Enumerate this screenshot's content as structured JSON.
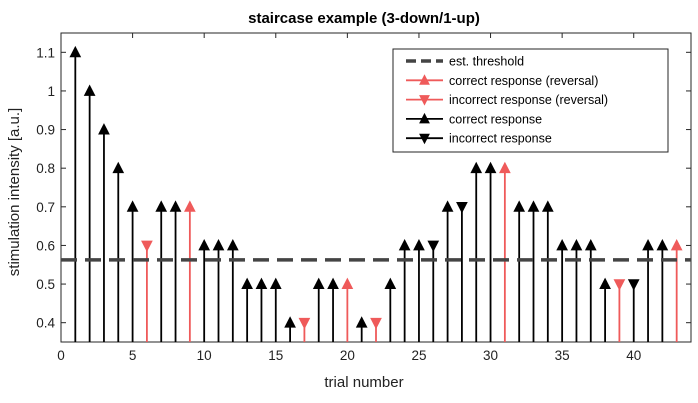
{
  "chart_data": {
    "type": "stem",
    "title": "staircase example (3-down/1-up)",
    "xlabel": "trial number",
    "ylabel": "stimulation intensity [a.u.]",
    "xlim": [
      0,
      44
    ],
    "ylim": [
      0.35,
      1.15
    ],
    "xticks": [
      0,
      5,
      10,
      15,
      20,
      25,
      30,
      35,
      40
    ],
    "yticks": [
      0.4,
      0.5,
      0.6,
      0.7,
      0.8,
      0.9,
      1.0,
      1.1
    ],
    "ytick_labels": [
      "0.4",
      "0.5",
      "0.6",
      "0.7",
      "0.8",
      "0.9",
      "1",
      "1.1"
    ],
    "grid": false,
    "legend_position": "top-right",
    "threshold": 0.5625,
    "colors": {
      "normal": "#000000",
      "reversal": "#ef5a5a",
      "threshold": "#444444"
    },
    "legend": [
      {
        "label": "est. threshold",
        "kind": "threshold"
      },
      {
        "label": "correct response (reversal)",
        "kind": "correct-reversal"
      },
      {
        "label": "incorrect response (reversal)",
        "kind": "incorrect-reversal"
      },
      {
        "label": "correct response",
        "kind": "correct"
      },
      {
        "label": "incorrect response",
        "kind": "incorrect"
      }
    ],
    "trials": [
      {
        "x": 1,
        "y": 1.1,
        "response": "correct",
        "reversal": false
      },
      {
        "x": 2,
        "y": 1.0,
        "response": "correct",
        "reversal": false
      },
      {
        "x": 3,
        "y": 0.9,
        "response": "correct",
        "reversal": false
      },
      {
        "x": 4,
        "y": 0.8,
        "response": "correct",
        "reversal": false
      },
      {
        "x": 5,
        "y": 0.7,
        "response": "correct",
        "reversal": false
      },
      {
        "x": 6,
        "y": 0.6,
        "response": "incorrect",
        "reversal": true
      },
      {
        "x": 7,
        "y": 0.7,
        "response": "correct",
        "reversal": false
      },
      {
        "x": 8,
        "y": 0.7,
        "response": "correct",
        "reversal": false
      },
      {
        "x": 9,
        "y": 0.7,
        "response": "correct",
        "reversal": true
      },
      {
        "x": 10,
        "y": 0.6,
        "response": "correct",
        "reversal": false
      },
      {
        "x": 11,
        "y": 0.6,
        "response": "correct",
        "reversal": false
      },
      {
        "x": 12,
        "y": 0.6,
        "response": "correct",
        "reversal": false
      },
      {
        "x": 13,
        "y": 0.5,
        "response": "correct",
        "reversal": false
      },
      {
        "x": 14,
        "y": 0.5,
        "response": "correct",
        "reversal": false
      },
      {
        "x": 15,
        "y": 0.5,
        "response": "correct",
        "reversal": false
      },
      {
        "x": 16,
        "y": 0.4,
        "response": "correct",
        "reversal": false
      },
      {
        "x": 17,
        "y": 0.4,
        "response": "incorrect",
        "reversal": true
      },
      {
        "x": 18,
        "y": 0.5,
        "response": "correct",
        "reversal": false
      },
      {
        "x": 19,
        "y": 0.5,
        "response": "correct",
        "reversal": false
      },
      {
        "x": 20,
        "y": 0.5,
        "response": "correct",
        "reversal": true
      },
      {
        "x": 21,
        "y": 0.4,
        "response": "correct",
        "reversal": false
      },
      {
        "x": 22,
        "y": 0.4,
        "response": "incorrect",
        "reversal": true
      },
      {
        "x": 23,
        "y": 0.5,
        "response": "correct",
        "reversal": false
      },
      {
        "x": 24,
        "y": 0.6,
        "response": "correct",
        "reversal": false
      },
      {
        "x": 25,
        "y": 0.6,
        "response": "correct",
        "reversal": false
      },
      {
        "x": 26,
        "y": 0.6,
        "response": "incorrect",
        "reversal": false
      },
      {
        "x": 27,
        "y": 0.7,
        "response": "correct",
        "reversal": false
      },
      {
        "x": 28,
        "y": 0.7,
        "response": "incorrect",
        "reversal": false
      },
      {
        "x": 29,
        "y": 0.8,
        "response": "correct",
        "reversal": false
      },
      {
        "x": 30,
        "y": 0.8,
        "response": "correct",
        "reversal": false
      },
      {
        "x": 31,
        "y": 0.8,
        "response": "correct",
        "reversal": true
      },
      {
        "x": 32,
        "y": 0.7,
        "response": "correct",
        "reversal": false
      },
      {
        "x": 33,
        "y": 0.7,
        "response": "correct",
        "reversal": false
      },
      {
        "x": 34,
        "y": 0.7,
        "response": "correct",
        "reversal": false
      },
      {
        "x": 35,
        "y": 0.6,
        "response": "correct",
        "reversal": false
      },
      {
        "x": 36,
        "y": 0.6,
        "response": "correct",
        "reversal": false
      },
      {
        "x": 37,
        "y": 0.6,
        "response": "correct",
        "reversal": false
      },
      {
        "x": 38,
        "y": 0.5,
        "response": "correct",
        "reversal": false
      },
      {
        "x": 39,
        "y": 0.5,
        "response": "incorrect",
        "reversal": true
      },
      {
        "x": 40,
        "y": 0.5,
        "response": "incorrect",
        "reversal": false
      },
      {
        "x": 41,
        "y": 0.6,
        "response": "correct",
        "reversal": false
      },
      {
        "x": 42,
        "y": 0.6,
        "response": "correct",
        "reversal": false
      },
      {
        "x": 43,
        "y": 0.6,
        "response": "correct",
        "reversal": true
      }
    ]
  }
}
